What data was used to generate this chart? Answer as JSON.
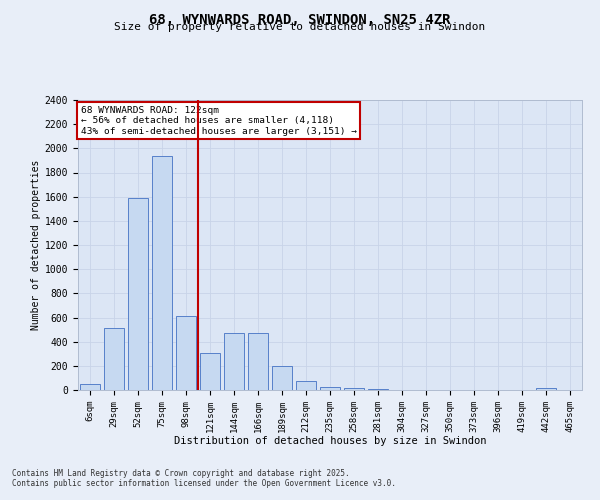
{
  "title": "68, WYNWARDS ROAD, SWINDON, SN25 4ZR",
  "subtitle": "Size of property relative to detached houses in Swindon",
  "xlabel": "Distribution of detached houses by size in Swindon",
  "ylabel": "Number of detached properties",
  "categories": [
    "6sqm",
    "29sqm",
    "52sqm",
    "75sqm",
    "98sqm",
    "121sqm",
    "144sqm",
    "166sqm",
    "189sqm",
    "212sqm",
    "235sqm",
    "258sqm",
    "281sqm",
    "304sqm",
    "327sqm",
    "350sqm",
    "373sqm",
    "396sqm",
    "419sqm",
    "442sqm",
    "465sqm"
  ],
  "values": [
    50,
    510,
    1590,
    1940,
    610,
    310,
    475,
    475,
    195,
    75,
    25,
    20,
    5,
    0,
    0,
    0,
    0,
    0,
    0,
    20,
    0
  ],
  "bar_color": "#c6d9f1",
  "bar_edge_color": "#4472c4",
  "vline_color": "#c00000",
  "annotation_title": "68 WYNWARDS ROAD: 122sqm",
  "annotation_line1": "← 56% of detached houses are smaller (4,118)",
  "annotation_line2": "43% of semi-detached houses are larger (3,151) →",
  "annotation_box_color": "#c00000",
  "ylim": [
    0,
    2400
  ],
  "yticks": [
    0,
    200,
    400,
    600,
    800,
    1000,
    1200,
    1400,
    1600,
    1800,
    2000,
    2200,
    2400
  ],
  "grid_color": "#c8d4e8",
  "bg_color": "#dce6f5",
  "fig_bg_color": "#e8eef8",
  "footer1": "Contains HM Land Registry data © Crown copyright and database right 2025.",
  "footer2": "Contains public sector information licensed under the Open Government Licence v3.0."
}
